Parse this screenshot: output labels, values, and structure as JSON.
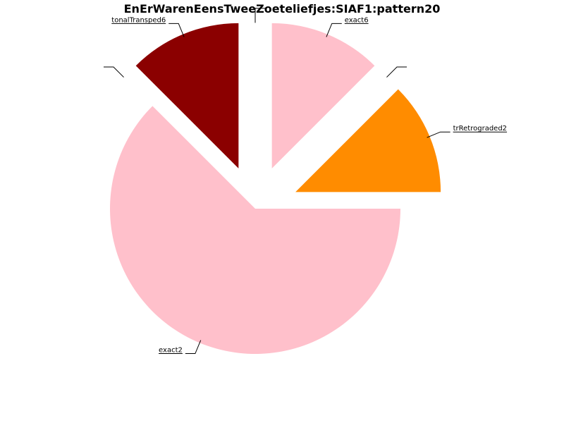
{
  "chart_data": {
    "type": "pie",
    "title": "EnErWarenEensTweeZoeteliefjes:SIAF1:pattern20",
    "slices": [
      {
        "label": "trRetrograded2",
        "value": 1,
        "color": "#ff8c00",
        "explode": 0.3
      },
      {
        "label": "",
        "value": 0,
        "color": "#d3d3d3",
        "explode": 0.3
      },
      {
        "label": "exact6",
        "value": 1,
        "color": "#ffc0cb",
        "explode": 0.3
      },
      {
        "label": "",
        "value": 0,
        "color": "#d3d3d3",
        "explode": 0.3
      },
      {
        "label": "tonalTransped6",
        "value": 1,
        "color": "#8b0000",
        "explode": 0.3
      },
      {
        "label": "",
        "value": 0,
        "color": "#d3d3d3",
        "explode": 0.3
      },
      {
        "label": "exact2",
        "value": 5,
        "color": "#ffc0cb",
        "explode": 0
      }
    ],
    "startangle": 0,
    "direction": "counterclockwise",
    "legend": "none"
  }
}
